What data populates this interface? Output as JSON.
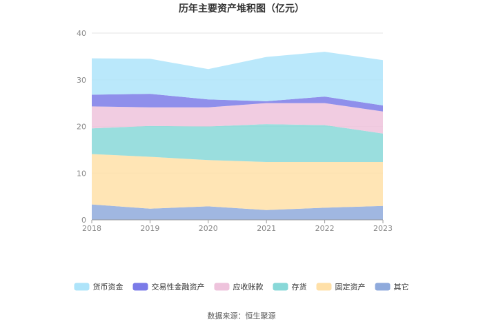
{
  "chart_data": {
    "type": "area",
    "stacked": true,
    "title": "历年主要资产堆积图（亿元）",
    "x": [
      "2018",
      "2019",
      "2020",
      "2021",
      "2022",
      "2023"
    ],
    "ylim": [
      0,
      40
    ],
    "yticks": [
      0,
      10,
      20,
      30,
      40
    ],
    "grid": true,
    "legend_position": "bottom",
    "series": [
      {
        "name": "其它",
        "color": "#8faadc",
        "values": [
          3.3,
          2.4,
          2.9,
          2.1,
          2.6,
          3.0
        ]
      },
      {
        "name": "固定资产",
        "color": "#ffe0a8",
        "values": [
          10.8,
          11.1,
          9.9,
          10.3,
          9.8,
          9.4
        ]
      },
      {
        "name": "存货",
        "color": "#88d8d8",
        "values": [
          5.5,
          6.6,
          7.2,
          8.1,
          7.9,
          6.1
        ]
      },
      {
        "name": "应收账款",
        "color": "#eec3dc",
        "values": [
          4.7,
          4.0,
          4.1,
          4.5,
          4.7,
          4.7
        ]
      },
      {
        "name": "交易性金融资产",
        "color": "#7b7be8",
        "values": [
          2.5,
          2.9,
          1.7,
          0.4,
          1.4,
          1.3
        ]
      },
      {
        "name": "货币资金",
        "color": "#aee4fa",
        "values": [
          7.8,
          7.5,
          6.5,
          9.5,
          9.6,
          9.7
        ]
      }
    ],
    "legend_order": [
      "货币资金",
      "交易性金融资产",
      "应收账款",
      "存货",
      "固定资产",
      "其它"
    ]
  },
  "source": "数据来源：恒生聚源"
}
